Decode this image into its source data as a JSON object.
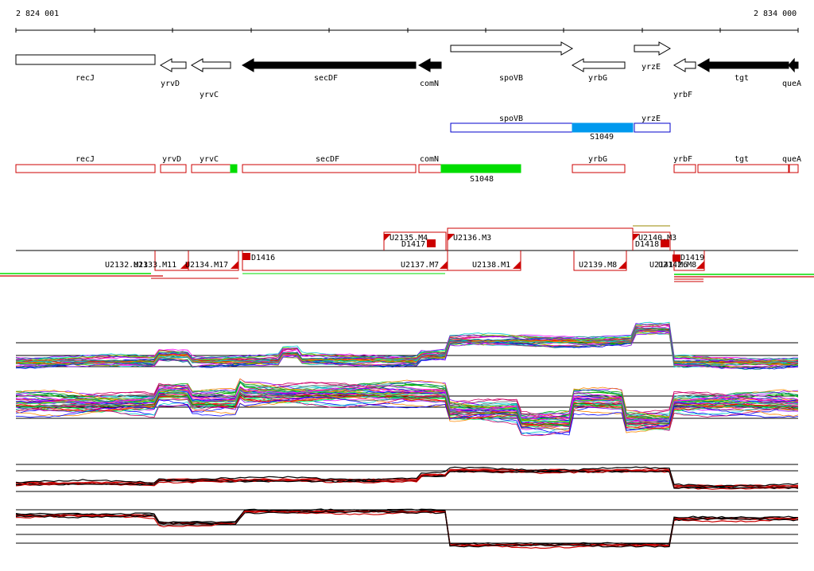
{
  "coords": {
    "start": "2 824 001",
    "end": "2 834 000"
  },
  "genes": [
    {
      "name": "recJ",
      "dir": "none",
      "fill": "white"
    },
    {
      "name": "yrvD",
      "dir": "left",
      "fill": "white"
    },
    {
      "name": "yrvC",
      "dir": "left",
      "fill": "white"
    },
    {
      "name": "secDF",
      "dir": "left",
      "fill": "black"
    },
    {
      "name": "comN",
      "dir": "left",
      "fill": "black"
    },
    {
      "name": "spoVB",
      "dir": "right",
      "fill": "white"
    },
    {
      "name": "yrbG",
      "dir": "left",
      "fill": "white"
    },
    {
      "name": "yrzE",
      "dir": "right",
      "fill": "white"
    },
    {
      "name": "yrbF",
      "dir": "left",
      "fill": "white"
    },
    {
      "name": "tgt",
      "dir": "left",
      "fill": "black"
    },
    {
      "name": "queA",
      "dir": "left",
      "fill": "black"
    }
  ],
  "upper_track": [
    {
      "name": "spoVB",
      "color": "#0000cc",
      "fill": "white"
    },
    {
      "name": "S1049",
      "color": "#0099ee",
      "fill": "#0099ee"
    },
    {
      "name": "yrzE",
      "color": "#0000cc",
      "fill": "white"
    }
  ],
  "lower_track": [
    {
      "name": "recJ",
      "color": "#cc0000",
      "fill": "white"
    },
    {
      "name": "yrvD",
      "color": "#cc0000",
      "fill": "white"
    },
    {
      "name": "yrvC",
      "color": "#cc0000",
      "fill": "white"
    },
    {
      "name": "secDF",
      "color": "#cc0000",
      "fill": "white"
    },
    {
      "name": "comN",
      "color": "#cc0000",
      "fill": "white"
    },
    {
      "name": "S1048",
      "color": "#00dd00",
      "fill": "#00dd00"
    },
    {
      "name": "yrbG",
      "color": "#cc0000",
      "fill": "white"
    },
    {
      "name": "yrbF",
      "color": "#cc0000",
      "fill": "white"
    },
    {
      "name": "tgt",
      "color": "#cc0000",
      "fill": "white"
    },
    {
      "name": "queA",
      "color": "#cc0000",
      "fill": "white"
    }
  ],
  "transcription_units_upper": [
    {
      "label": "U2135.M4"
    },
    {
      "label": "D1417"
    },
    {
      "label": "U2136.M3"
    },
    {
      "label": "U2140.M3"
    },
    {
      "label": "D1418"
    }
  ],
  "transcription_units_lower": [
    {
      "label": "U2132.M13"
    },
    {
      "label": "U2133.M11"
    },
    {
      "label": "U2134.M17"
    },
    {
      "label": "D1416"
    },
    {
      "label": "U2137.M7"
    },
    {
      "label": "U2138.M1"
    },
    {
      "label": "U2139.M8"
    },
    {
      "label": "U2141.M6"
    },
    {
      "label": "U2142.M8"
    },
    {
      "label": "D1419"
    }
  ],
  "colors": {
    "axis": "#000000",
    "gene_outline": "#000000",
    "red": "#cc0000",
    "green": "#00dd00",
    "blue": "#0099ee",
    "navy": "#0000cc"
  }
}
